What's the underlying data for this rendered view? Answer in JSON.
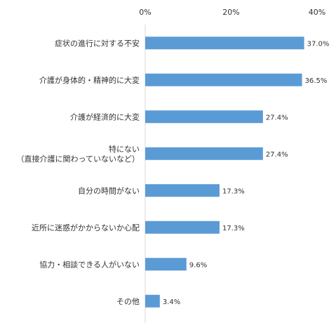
{
  "chart_data": {
    "type": "bar",
    "orientation": "horizontal",
    "categories": [
      [
        "症状の進行に対する不安"
      ],
      [
        "介護が身体的・精神的に大変"
      ],
      [
        "介護が経済的に大変"
      ],
      [
        "特にない",
        "（直接介護に関わっていないなど）"
      ],
      [
        "自分の時間がない"
      ],
      [
        "近所に迷惑がかからないか心配"
      ],
      [
        "協力・相談できる人がいない"
      ],
      [
        "その他"
      ]
    ],
    "values": [
      37.0,
      36.5,
      27.4,
      27.4,
      17.3,
      17.3,
      9.6,
      3.4
    ],
    "value_labels": [
      "37.0%",
      "36.5%",
      "27.4%",
      "27.4%",
      "17.3%",
      "17.3%",
      "9.6%",
      "3.4%"
    ],
    "xlim": [
      0,
      40
    ],
    "x_ticks": [
      0,
      20,
      40
    ],
    "x_tick_labels": [
      "0%",
      "20%",
      "40%"
    ],
    "axis_position": "top",
    "grid": false,
    "legend": "none",
    "colors": {
      "bar": "#5b9bd5",
      "axis": "#d9d9d9",
      "text": "#333333"
    }
  }
}
